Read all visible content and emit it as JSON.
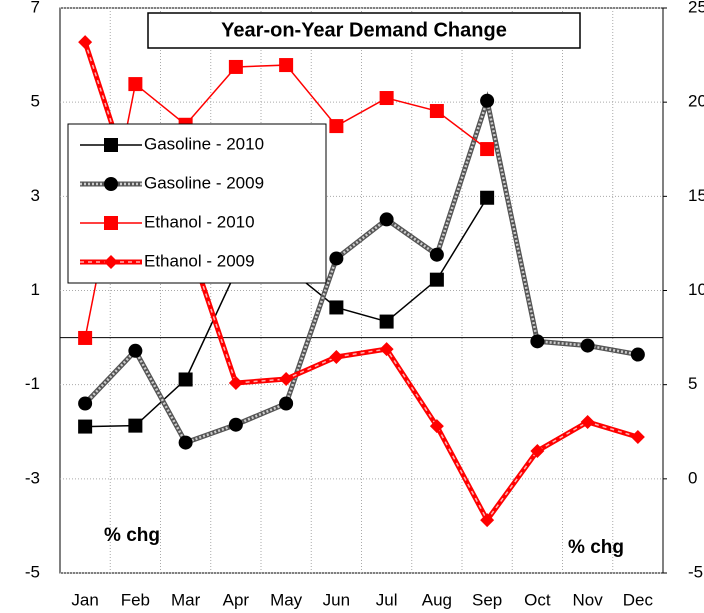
{
  "chart_data": {
    "type": "line",
    "title": "Year-on-Year Demand Change",
    "categories": [
      "Jan",
      "Feb",
      "Mar",
      "Apr",
      "May",
      "Jun",
      "Jul",
      "Aug",
      "Sep",
      "Oct",
      "Nov",
      "Dec"
    ],
    "ylim": [
      -5,
      7
    ],
    "yticks": [
      -5,
      -3,
      -1,
      1,
      3,
      5,
      7
    ],
    "y2lim": [
      -5,
      25
    ],
    "y2ticks": [
      -5,
      0,
      5,
      10,
      15,
      20,
      25
    ],
    "y_label": "% chg",
    "y2_label": "% chg",
    "y2_color": "#ff0000",
    "grid": true,
    "series": [
      {
        "name": "Gasoline - 2010",
        "color": "#000000",
        "marker": "square",
        "style": "solid",
        "values": [
          -1.89,
          -1.87,
          -0.89,
          1.4,
          1.5,
          0.64,
          0.34,
          1.23,
          2.97,
          null,
          null,
          null
        ]
      },
      {
        "name": "Gasoline - 2009",
        "color": "#000000",
        "marker": "circle",
        "style": "checker",
        "values": [
          -1.4,
          -0.28,
          -2.23,
          -1.85,
          -1.4,
          1.68,
          2.51,
          1.76,
          5.03,
          -0.08,
          -0.17,
          -0.36
        ]
      },
      {
        "name": "Ethanol - 2010",
        "color": "#ff0000",
        "marker": "square",
        "style": "solid",
        "axis": "y2",
        "values": [
          7.48,
          20.96,
          18.8,
          21.87,
          21.97,
          18.73,
          20.22,
          19.53,
          17.51,
          null,
          null,
          null
        ]
      },
      {
        "name": "Ethanol - 2009",
        "color": "#ff0000",
        "marker": "diamond",
        "style": "dashed",
        "axis": "y2",
        "values": [
          23.19,
          15,
          13,
          5.09,
          5.3,
          6.47,
          6.89,
          2.8,
          -2.19,
          1.48,
          3.02,
          2.22
        ]
      }
    ]
  }
}
